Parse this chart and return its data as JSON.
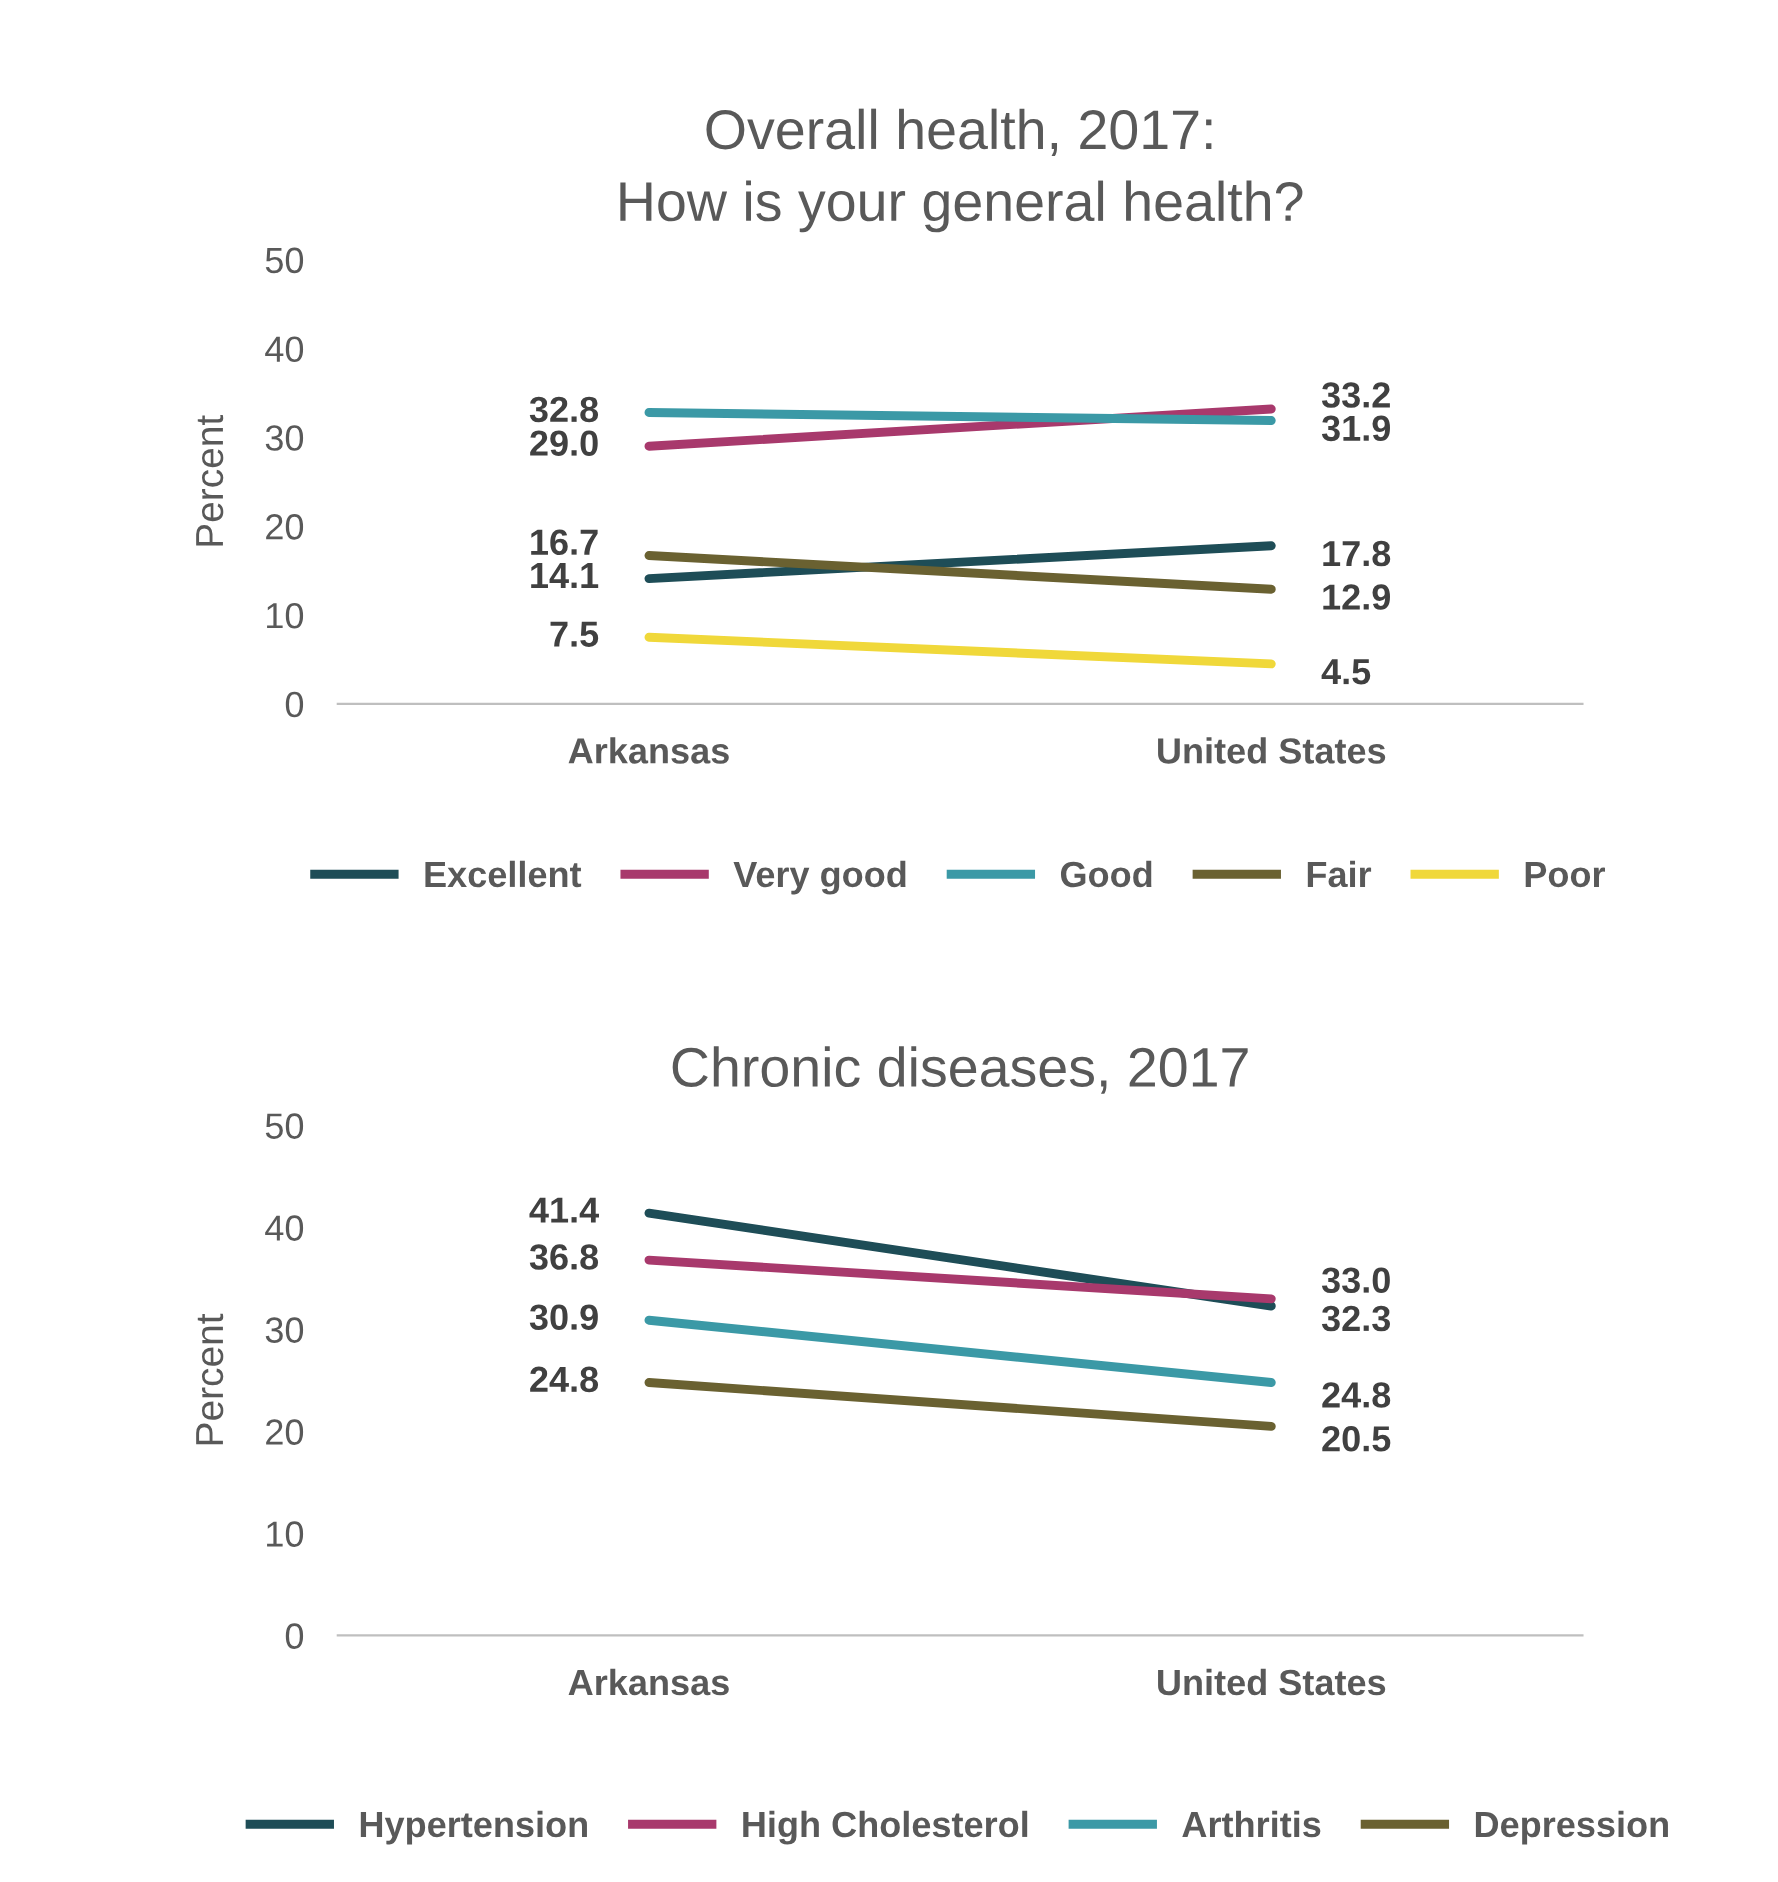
{
  "chart_data": [
    {
      "type": "line",
      "title": "Overall health, 2017:\nHow is your general health?",
      "ylabel": "Percent",
      "categories": [
        "Arkansas",
        "United States"
      ],
      "ylim": [
        0,
        50
      ],
      "yticks": [
        0,
        10,
        20,
        30,
        40,
        50
      ],
      "grid": false,
      "legend": "bottom",
      "marker": "none",
      "line_style": "solid",
      "series": [
        {
          "name": "Excellent",
          "color": "#1e4d57",
          "values": [
            14.1,
            17.8
          ],
          "value_labels": [
            "14.1",
            "17.8"
          ]
        },
        {
          "name": "Very good",
          "color": "#a8396c",
          "values": [
            29.0,
            33.2
          ],
          "value_labels": [
            "29.0",
            "33.2"
          ]
        },
        {
          "name": "Good",
          "color": "#3b99a6",
          "values": [
            32.8,
            31.9
          ],
          "value_labels": [
            "32.8",
            "31.9"
          ]
        },
        {
          "name": "Fair",
          "color": "#6a6131",
          "values": [
            16.7,
            12.9
          ],
          "value_labels": [
            "16.7",
            "12.9"
          ]
        },
        {
          "name": "Poor",
          "color": "#f0d83a",
          "values": [
            7.5,
            4.5
          ],
          "value_labels": [
            "7.5",
            "4.5"
          ]
        }
      ]
    },
    {
      "type": "line",
      "title": "Chronic diseases, 2017",
      "ylabel": "Percent",
      "categories": [
        "Arkansas",
        "United States"
      ],
      "ylim": [
        0,
        50
      ],
      "yticks": [
        0,
        10,
        20,
        30,
        40,
        50
      ],
      "grid": false,
      "legend": "bottom",
      "marker": "none",
      "line_style": "solid",
      "series": [
        {
          "name": "Hypertension",
          "color": "#1e4d57",
          "values": [
            41.4,
            32.3
          ],
          "value_labels": [
            "41.4",
            "32.3"
          ]
        },
        {
          "name": "High Cholesterol",
          "color": "#a8396c",
          "values": [
            36.8,
            33.0
          ],
          "value_labels": [
            "36.8",
            "33.0"
          ]
        },
        {
          "name": "Arthritis",
          "color": "#3b99a6",
          "values": [
            30.9,
            24.8
          ],
          "value_labels": [
            "30.9",
            "24.8"
          ]
        },
        {
          "name": "Depression",
          "color": "#6a6131",
          "values": [
            24.8,
            20.5
          ],
          "value_labels": [
            "24.8",
            "20.5"
          ]
        }
      ]
    }
  ]
}
